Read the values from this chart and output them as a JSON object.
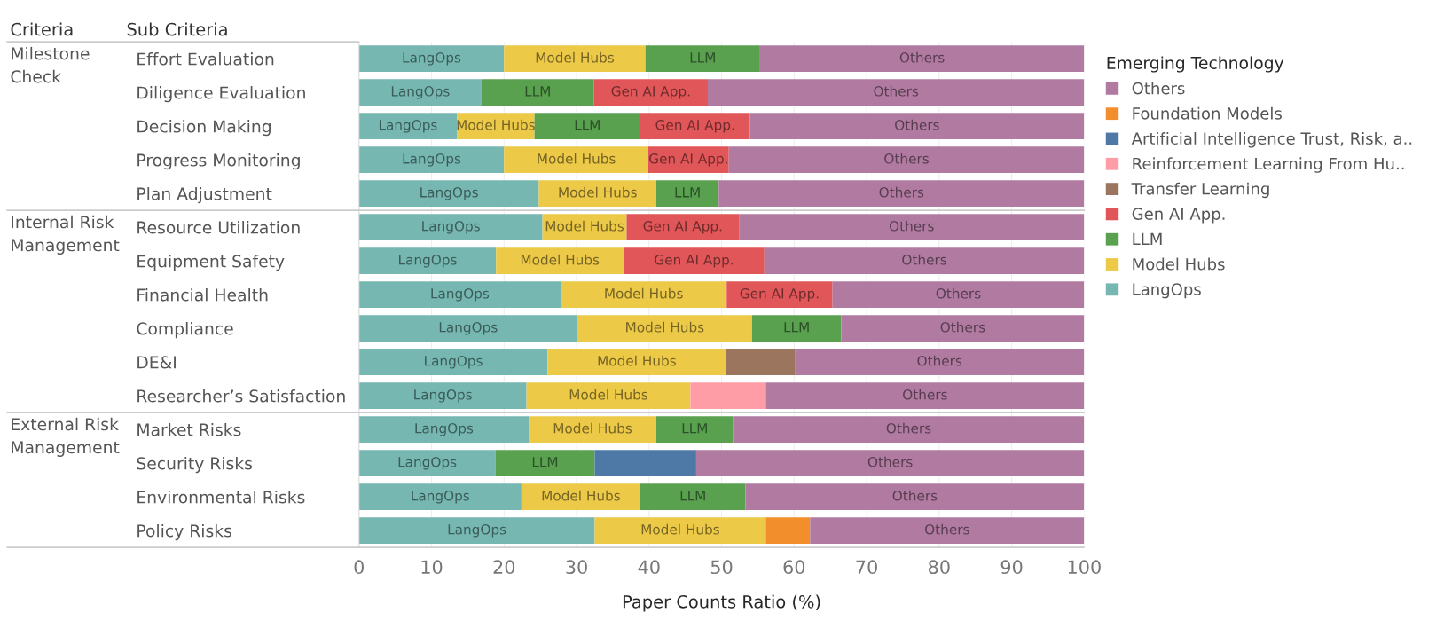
{
  "chart_data": {
    "type": "bar",
    "orientation": "horizontal",
    "stacked": true,
    "xlabel": "Paper Counts Ratio (%)",
    "legend_title": "Emerging Technology",
    "legend": "right",
    "grid": "x",
    "xlim": [
      0,
      100
    ],
    "xticks": [
      0,
      10,
      20,
      30,
      40,
      50,
      60,
      70,
      80,
      90,
      100
    ],
    "categories": [
      "Effort Evaluation",
      "Diligence Evaluation",
      "Decision Making",
      "Progress Monitoring",
      "Plan Adjustment",
      "Resource Utilization",
      "Equipment Safety",
      "Financial Health",
      "Compliance",
      "DE&I",
      "Researcher’s Satisfaction",
      "Market Risks",
      "Security Risks",
      "Environmental Risks",
      "Policy Risks"
    ],
    "annotations": [
      "Criteria",
      "Sub Criteria",
      "Milestone\nCheck",
      "Internal Risk\nManagement",
      "External Risk\nManagement"
    ],
    "series": [
      {
        "name": "LangOps",
        "color": "#76b7b2",
        "values": [
          20,
          16.9,
          13.5,
          20,
          24.8,
          25.3,
          18.9,
          27.8,
          30.1,
          26,
          23.1,
          23.4,
          18.8,
          22.4,
          32.5
        ],
        "value_labels": [
          "LangOps",
          "LangOps",
          "LangOps",
          "LangOps",
          "LangOps",
          "LangOps",
          "LangOps",
          "LangOps",
          "LangOps",
          "LangOps",
          "LangOps",
          "LangOps",
          "LangOps",
          "LangOps",
          "LangOps"
        ]
      },
      {
        "name": "Model Hubs",
        "color": "#edc948",
        "values": [
          19.5,
          0,
          10.7,
          19.9,
          16.2,
          11.6,
          17.6,
          22.9,
          24.1,
          24.6,
          22.6,
          17.6,
          0,
          16.4,
          23.6
        ],
        "value_labels": [
          "Model Hubs",
          null,
          "Model Hubs",
          "Model Hubs",
          "Model Hubs",
          "Model Hubs",
          "Model Hubs",
          "Model Hubs",
          "Model Hubs",
          "Model Hubs",
          "Model Hubs",
          "Model Hubs",
          null,
          "Model Hubs",
          "Model Hubs"
        ]
      },
      {
        "name": "LLM",
        "color": "#59a14f",
        "values": [
          15.8,
          15.5,
          14.6,
          0,
          8.6,
          0,
          0,
          0,
          12.3,
          0,
          0,
          10.6,
          13.7,
          14.5,
          0
        ],
        "value_labels": [
          "LLM",
          "LLM",
          "LLM",
          null,
          "LLM",
          null,
          null,
          null,
          "LLM",
          null,
          null,
          "LLM",
          "LLM",
          "LLM",
          null
        ]
      },
      {
        "name": "Gen AI App.",
        "color": "#e15759",
        "values": [
          0,
          15.7,
          15.1,
          11.1,
          0,
          15.5,
          19.4,
          14.6,
          0,
          0,
          0,
          0,
          0,
          0,
          0
        ],
        "value_labels": [
          null,
          "Gen AI App.",
          "Gen AI App.",
          "Gen AI App.",
          null,
          "Gen AI App.",
          "Gen AI App.",
          "Gen AI App.",
          null,
          null,
          null,
          null,
          null,
          null,
          null
        ]
      },
      {
        "name": "Transfer Learning",
        "color": "#9c755f",
        "values": [
          0,
          0,
          0,
          0,
          0,
          0,
          0,
          0,
          0,
          9.5,
          0,
          0,
          0,
          0,
          0
        ]
      },
      {
        "name": "Reinforcement Learning From Hu..",
        "color": "#ff9da7",
        "values": [
          0,
          0,
          0,
          0,
          0,
          0,
          0,
          0,
          0,
          0,
          10.4,
          0,
          0,
          0,
          0
        ]
      },
      {
        "name": "Artificial Intelligence Trust, Risk, a..",
        "color": "#4e79a7",
        "values": [
          0,
          0,
          0,
          0,
          0,
          0,
          0,
          0,
          0,
          0,
          0,
          0,
          14,
          0,
          0
        ]
      },
      {
        "name": "Foundation Models",
        "color": "#f28e2b",
        "values": [
          0,
          0,
          0,
          0,
          0,
          0,
          0,
          0,
          0,
          0,
          0,
          0,
          0,
          0,
          6.1
        ]
      },
      {
        "name": "Others",
        "color": "#b07aa1",
        "values": [
          44.7,
          51.9,
          46.1,
          49,
          50.4,
          47.6,
          44.1,
          34.7,
          33.5,
          39.9,
          43.9,
          48.4,
          53.5,
          46.7,
          37.8
        ],
        "value_labels": [
          "Others",
          "Others",
          "Others",
          "Others",
          "Others",
          "Others",
          "Others",
          "Others",
          "Others",
          "Others",
          "Others",
          "Others",
          "Others",
          "Others",
          "Others"
        ]
      }
    ]
  }
}
